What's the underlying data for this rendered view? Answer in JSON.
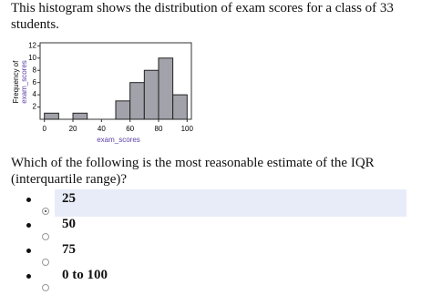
{
  "intro": "This histogram shows the distribution of exam scores for a class of 33 students.",
  "chart_data": {
    "type": "histogram",
    "bins": [
      0,
      10,
      20,
      30,
      40,
      50,
      60,
      70,
      80,
      90,
      100
    ],
    "values": [
      1,
      0,
      1,
      0,
      0,
      3,
      6,
      8,
      10,
      4
    ],
    "color": "#a2a2aa",
    "xlabel": "exam_scores",
    "ylabel": [
      "Frequency of",
      "exam_scores"
    ],
    "xlim": [
      -3,
      103
    ],
    "xticks": [
      0,
      20,
      40,
      60,
      80,
      100
    ],
    "ylim": [
      0,
      12.5
    ],
    "yticks": [
      2,
      4,
      6,
      8,
      10,
      12
    ]
  },
  "question": "Which of the following is the most reasonable estimate of the IQR (interquartile range)?",
  "options": [
    "25",
    "50",
    "75",
    "0 to 100"
  ],
  "selected": 0
}
